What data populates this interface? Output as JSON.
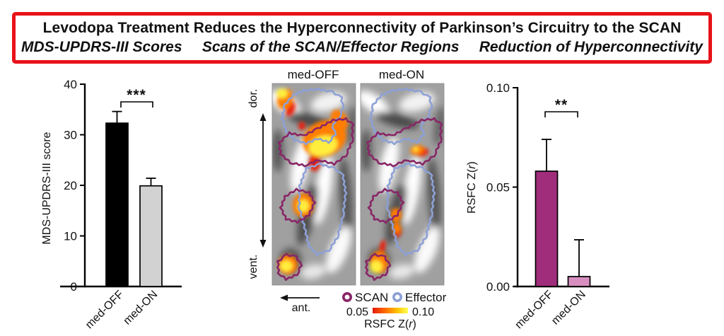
{
  "header": {
    "title": "Levodopa Treatment Reduces the Hyperconnectivity of Parkinson’s Circuitry to the SCAN",
    "subtitles": [
      "MDS-UPDRS-III Scores",
      "Scans of the SCAN/Effector Regions",
      "Reduction of Hyperconnectivity"
    ],
    "border_color": "#e81219"
  },
  "chart_data": [
    {
      "type": "bar",
      "panel": "left",
      "title": "MDS-UPDRS-III Scores",
      "categories": [
        "med-OFF",
        "med-ON"
      ],
      "values": [
        32.3,
        19.9
      ],
      "errors_upper": [
        34.6,
        21.4
      ],
      "bar_colors": [
        "#000000",
        "#d2d2d2"
      ],
      "ylabel": "MDS-UPDRS-III score",
      "xlabel": "",
      "ylim": [
        0,
        40
      ],
      "yticks": [
        {
          "v": 0,
          "label": "0"
        },
        {
          "v": 10,
          "label": "10"
        },
        {
          "v": 20,
          "label": "20"
        },
        {
          "v": 30,
          "label": "30"
        },
        {
          "v": 40,
          "label": "40"
        }
      ],
      "significance": "***",
      "grid": false,
      "legend_position": "none"
    },
    {
      "type": "bar",
      "panel": "right",
      "title": "Reduction of Hyperconnectivity",
      "categories": [
        "med-OFF",
        "med-ON"
      ],
      "values": [
        0.058,
        0.005
      ],
      "errors_upper": [
        0.074,
        0.0235
      ],
      "bar_colors": [
        "#a02c7c",
        "#d88fc0"
      ],
      "ylabel_parts": [
        "RSFC Z(",
        "r",
        ")"
      ],
      "xlabel": "",
      "ylim": [
        0,
        0.1
      ],
      "yticks": [
        {
          "v": 0,
          "label": "0.00"
        },
        {
          "v": 0.05,
          "label": "0.05"
        },
        {
          "v": 0.1,
          "label": "0.10"
        }
      ],
      "significance": "**",
      "grid": false,
      "legend_position": "none"
    }
  ],
  "scan_panel": {
    "panel_labels": [
      "med-OFF",
      "med-ON"
    ],
    "orientation": {
      "dorsal": "dor.",
      "ventral": "vent.",
      "anterior": "ant."
    },
    "legend": [
      {
        "label": "SCAN",
        "color": "#882667"
      },
      {
        "label": "Effector",
        "color": "#8da0d6"
      }
    ],
    "colorbar": {
      "min": "0.05",
      "max": "0.10",
      "label_parts": [
        "RSFC Z(",
        "r",
        ")"
      ],
      "colors": [
        "#e41a09",
        "#ff6a00",
        "#ffc400",
        "#ffff55"
      ]
    }
  }
}
